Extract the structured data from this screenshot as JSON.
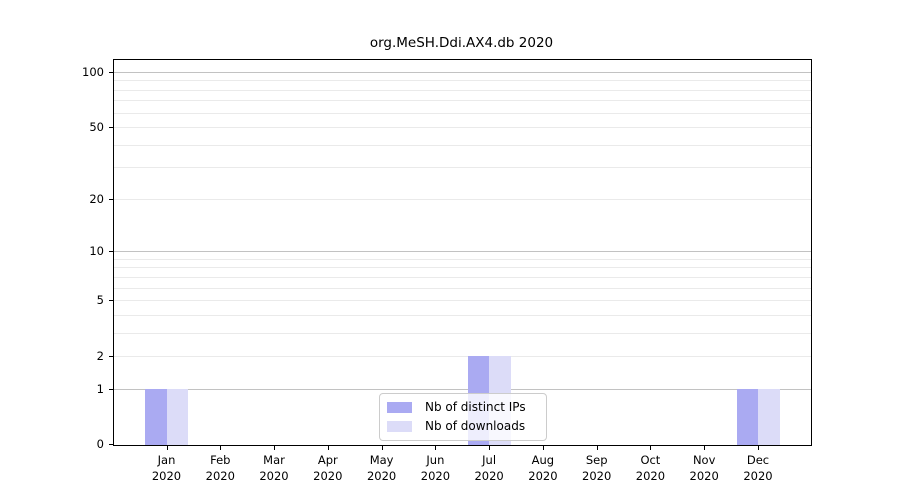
{
  "figure": {
    "background": "#ffffff"
  },
  "chart_data": {
    "type": "bar",
    "title": "org.MeSH.Ddi.AX4.db 2020",
    "categories": [
      "Jan 2020",
      "Feb 2020",
      "Mar 2020",
      "Apr 2020",
      "May 2020",
      "Jun 2020",
      "Jul 2020",
      "Aug 2020",
      "Sep 2020",
      "Oct 2020",
      "Nov 2020",
      "Dec 2020"
    ],
    "x_tick_months": [
      "Jan",
      "Feb",
      "Mar",
      "Apr",
      "May",
      "Jun",
      "Jul",
      "Aug",
      "Sep",
      "Oct",
      "Nov",
      "Dec"
    ],
    "x_tick_year": "2020",
    "series": [
      {
        "name": "Nb of distinct IPs",
        "color": "#aaaaf2",
        "values": [
          1,
          0,
          0,
          0,
          0,
          0,
          2,
          0,
          0,
          0,
          0,
          1
        ]
      },
      {
        "name": "Nb of downloads",
        "color": "#dcdcf8",
        "values": [
          1,
          0,
          0,
          0,
          0,
          0,
          2,
          0,
          0,
          0,
          0,
          1
        ]
      }
    ],
    "y_axis": {
      "scale": "log1p",
      "tick_values": [
        0,
        1,
        2,
        5,
        10,
        20,
        50,
        100
      ],
      "tick_labels": [
        "0",
        "1",
        "2",
        "5",
        "10",
        "20",
        "50",
        "100"
      ],
      "major_gridlines": [
        1,
        10,
        100
      ],
      "minor_gridlines": [
        2,
        3,
        4,
        5,
        6,
        7,
        8,
        9,
        20,
        30,
        40,
        50,
        60,
        70,
        80,
        90
      ],
      "ylim": [
        0,
        116
      ]
    },
    "legend": {
      "position": "lower center",
      "labels": [
        "Nb of distinct IPs",
        "Nb of downloads"
      ]
    },
    "grid": true
  },
  "colors": {
    "background": "#ffffff",
    "axis": "#000000",
    "text": "#000000",
    "major_gridline": "#c2c2c2",
    "minor_gridline": "#eaeaea",
    "distinct_ips_bar": "#aaaaf2",
    "downloads_bar": "#dcdcf8",
    "legend_border": "#cccccc"
  }
}
